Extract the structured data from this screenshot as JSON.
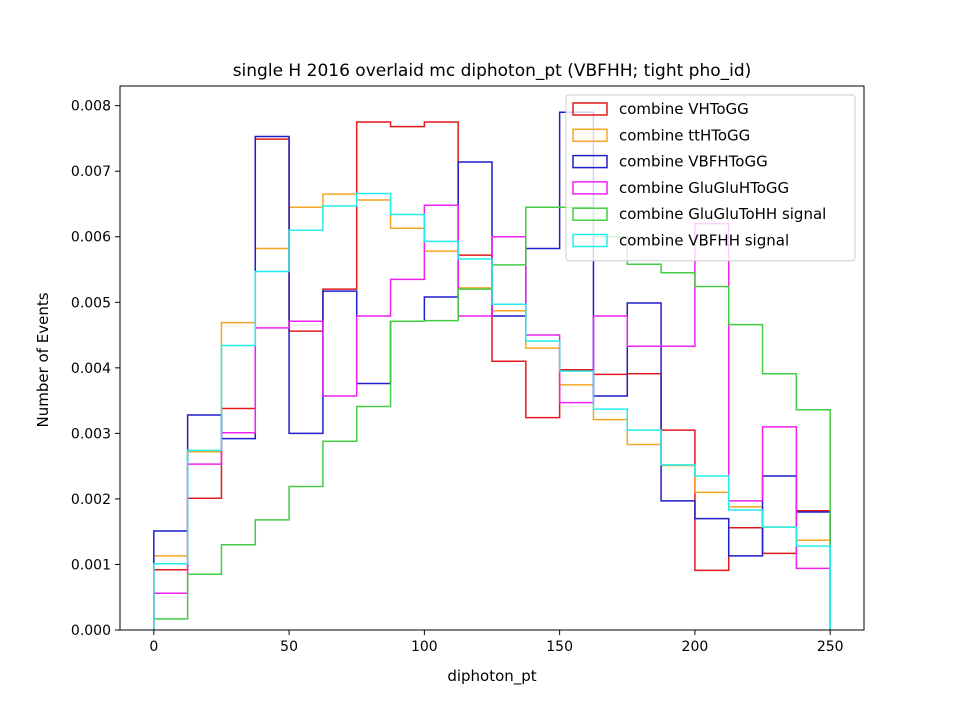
{
  "chart_data": {
    "type": "histogram-step",
    "title": "single H 2016 overlaid mc diphoton_pt (VBFHH; tight pho_id)",
    "xlabel": "diphoton_pt",
    "ylabel": "Number of Events",
    "xlim": [
      -12.5,
      262.5
    ],
    "ylim": [
      0,
      0.0083
    ],
    "x_ticks": [
      0,
      50,
      100,
      150,
      200,
      250
    ],
    "x_tick_labels": [
      "0",
      "50",
      "100",
      "150",
      "200",
      "250"
    ],
    "y_ticks": [
      0,
      0.001,
      0.002,
      0.003,
      0.004,
      0.005,
      0.006,
      0.007,
      0.008
    ],
    "y_tick_labels": [
      "0.000",
      "0.001",
      "0.002",
      "0.003",
      "0.004",
      "0.005",
      "0.006",
      "0.007",
      "0.008"
    ],
    "bin_edges": [
      0,
      12.5,
      25,
      37.5,
      50,
      62.5,
      75,
      87.5,
      100,
      112.5,
      125,
      137.5,
      150,
      162.5,
      175,
      187.5,
      200,
      212.5,
      225,
      237.5,
      250
    ],
    "legend_position": "upper right",
    "grid": false,
    "series": [
      {
        "name": "combine VHToGG",
        "color": "#e41a1c",
        "values": [
          0.00092,
          0.00201,
          0.00338,
          0.00749,
          0.00456,
          0.0052,
          0.00775,
          0.00768,
          0.00775,
          0.00572,
          0.0041,
          0.00324,
          0.00397,
          0.0039,
          0.00391,
          0.00305,
          0.00091,
          0.00156,
          0.00117,
          0.00182
        ]
      },
      {
        "name": "combine ttHToGG",
        "color": "#f5a623",
        "values": [
          0.00113,
          0.00272,
          0.00469,
          0.00582,
          0.00645,
          0.00665,
          0.00656,
          0.00613,
          0.00578,
          0.00522,
          0.00487,
          0.0043,
          0.00374,
          0.00321,
          0.00283,
          0.00251,
          0.0021,
          0.00188,
          0.00157,
          0.00137
        ]
      },
      {
        "name": "combine VBFHToGG",
        "color": "#1f1fcc",
        "values": [
          0.00151,
          0.00328,
          0.00292,
          0.00753,
          0.003,
          0.00517,
          0.00376,
          0.00471,
          0.00508,
          0.00714,
          0.00479,
          0.00582,
          0.0079,
          0.00357,
          0.00499,
          0.00197,
          0.0017,
          0.00113,
          0.00235,
          0.0018
        ]
      },
      {
        "name": "combine GluGluHToGG",
        "color": "#ee22ee",
        "values": [
          0.00056,
          0.00253,
          0.00301,
          0.00461,
          0.00471,
          0.00357,
          0.00479,
          0.00535,
          0.00648,
          0.00479,
          0.006,
          0.0045,
          0.00347,
          0.00479,
          0.00433,
          0.00433,
          0.0062,
          0.00197,
          0.0031,
          0.00094
        ]
      },
      {
        "name": "combine GluGluToHH signal",
        "color": "#44cc44",
        "values": [
          0.00017,
          0.00085,
          0.0013,
          0.00168,
          0.00219,
          0.00288,
          0.00341,
          0.00471,
          0.00472,
          0.0052,
          0.00557,
          0.00645,
          0.00645,
          0.006,
          0.00558,
          0.00545,
          0.00524,
          0.00466,
          0.00391,
          0.00336
        ]
      },
      {
        "name": "combine VBFHH signal",
        "color": "#22eeee",
        "values": [
          0.00101,
          0.00274,
          0.00434,
          0.00547,
          0.0061,
          0.00647,
          0.00666,
          0.00634,
          0.00593,
          0.00566,
          0.00497,
          0.00441,
          0.00395,
          0.00337,
          0.00305,
          0.00252,
          0.00235,
          0.00183,
          0.00157,
          0.00128
        ]
      }
    ]
  }
}
